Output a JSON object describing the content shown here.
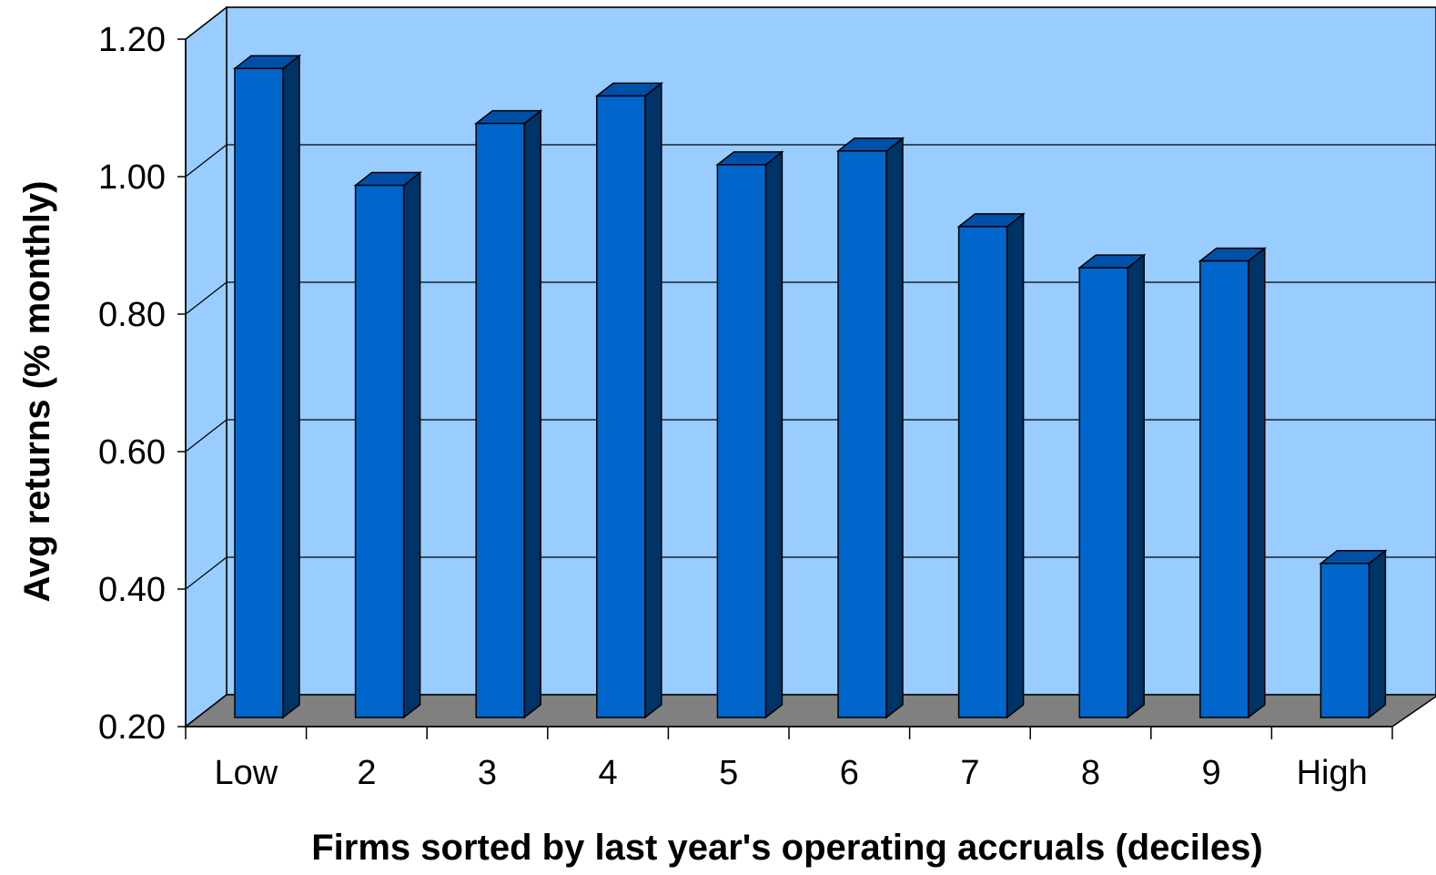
{
  "chart_data": {
    "type": "bar",
    "title": "",
    "xlabel": "Firms sorted by last year's operating accruals (deciles)",
    "ylabel": "Avg returns (% monthly)",
    "categories": [
      "Low",
      "2",
      "3",
      "4",
      "5",
      "6",
      "7",
      "8",
      "9",
      "High"
    ],
    "values": [
      1.16,
      0.99,
      1.08,
      1.12,
      1.02,
      1.04,
      0.93,
      0.87,
      0.88,
      0.44
    ],
    "ylim": [
      0.2,
      1.2
    ],
    "yticks": [
      "0.20",
      "0.40",
      "0.60",
      "0.80",
      "1.00",
      "1.20"
    ],
    "style": "3d-column",
    "grid": true,
    "legend": "none",
    "colors": {
      "bar_front": "#0066CC",
      "bar_top": "#0050A8",
      "bar_side": "#003366",
      "wall": "#99CCFF",
      "floor": "#808080"
    }
  }
}
